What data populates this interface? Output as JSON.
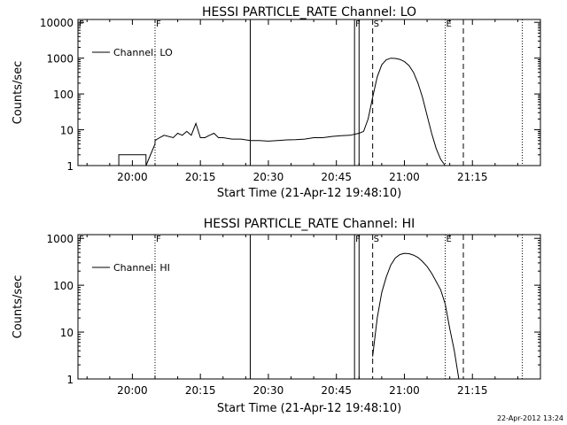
{
  "chart_data": [
    {
      "type": "line",
      "title": "HESSI PARTICLE_RATE Channel: LO",
      "xlabel": "Start Time (21-Apr-12 19:48:10)",
      "ylabel": "Counts/sec",
      "y_scale": "log",
      "ylim": [
        1,
        12000
      ],
      "xlim": [
        "19:48",
        "21:30"
      ],
      "x_ticks": [
        "20:00",
        "20:15",
        "20:30",
        "20:45",
        "21:00",
        "21:15"
      ],
      "y_ticks": [
        "1",
        "10",
        "100",
        "1000",
        "10000"
      ],
      "legend": {
        "placement": "top-left",
        "entries": [
          "Channel: LO"
        ]
      },
      "series": [
        {
          "name": "Channel: LO",
          "color": "#000000",
          "x": [
            "19:56",
            "19:56",
            "19:57",
            "19:57",
            "19:59",
            "20:02",
            "20:03",
            "20:03",
            "20:05",
            "20:05",
            "20:06",
            "20:07",
            "20:09",
            "20:10",
            "20:11",
            "20:12",
            "20:13",
            "20:14",
            "20:15",
            "20:16",
            "20:17",
            "20:18",
            "20:19",
            "20:20",
            "20:22",
            "20:24",
            "20:26",
            "20:28",
            "20:30",
            "20:32",
            "20:34",
            "20:36",
            "20:38",
            "20:40",
            "20:42",
            "20:44",
            "20:46",
            "20:48",
            "20:49",
            "20:50",
            "20:51",
            "20:52",
            "20:53",
            "20:54",
            "20:55",
            "20:56",
            "20:57",
            "20:58",
            "20:59",
            "21:00",
            "21:01",
            "21:02",
            "21:03",
            "21:04",
            "21:05",
            "21:06",
            "21:07",
            "21:08",
            "21:09",
            "21:10",
            "21:11",
            "21:12"
          ],
          "y": [
            1,
            1,
            1,
            2,
            2,
            2,
            2,
            1,
            4,
            5,
            6,
            7,
            6,
            8,
            7,
            9,
            7,
            15,
            6,
            6,
            7,
            8,
            6,
            6,
            5.5,
            5.5,
            5,
            5,
            4.8,
            5,
            5.2,
            5.3,
            5.5,
            6,
            6,
            6.5,
            6.8,
            7,
            7.5,
            8,
            9,
            20,
            80,
            300,
            650,
            900,
            1000,
            980,
            920,
            800,
            620,
            400,
            200,
            80,
            25,
            8,
            3,
            1.5,
            1,
            1,
            1,
            1
          ]
        }
      ],
      "markers": [
        {
          "label": "F",
          "time": "19:48",
          "style": "dotted"
        },
        {
          "label": "F",
          "time": "20:05",
          "style": "dotted"
        },
        {
          "label": "",
          "time": "20:26",
          "style": "solid"
        },
        {
          "label": "F",
          "time": "20:49",
          "style": "solid"
        },
        {
          "label": "",
          "time": "20:50",
          "style": "solid"
        },
        {
          "label": "S",
          "time": "20:53",
          "style": "dashed"
        },
        {
          "label": "E",
          "time": "21:09",
          "style": "dotted"
        },
        {
          "label": "",
          "time": "21:13",
          "style": "dashed"
        },
        {
          "label": "",
          "time": "21:26",
          "style": "dotted"
        }
      ]
    },
    {
      "type": "line",
      "title": "HESSI PARTICLE_RATE Channel: HI",
      "xlabel": "Start Time (21-Apr-12 19:48:10)",
      "ylabel": "Counts/sec",
      "y_scale": "log",
      "ylim": [
        1,
        1200
      ],
      "xlim": [
        "19:48",
        "21:30"
      ],
      "x_ticks": [
        "20:00",
        "20:15",
        "20:30",
        "20:45",
        "21:00",
        "21:15"
      ],
      "y_ticks": [
        "1",
        "10",
        "100",
        "1000"
      ],
      "legend": {
        "placement": "top-left",
        "entries": [
          "Channel: HI"
        ]
      },
      "series": [
        {
          "name": "Channel: HI",
          "color": "#000000",
          "x": [
            "20:53",
            "20:54",
            "20:55",
            "20:56",
            "20:57",
            "20:58",
            "20:59",
            "21:00",
            "21:01",
            "21:02",
            "21:03",
            "21:04",
            "21:05",
            "21:06",
            "21:07",
            "21:08",
            "21:09",
            "21:10",
            "21:11",
            "21:12"
          ],
          "y": [
            3,
            20,
            70,
            150,
            270,
            380,
            450,
            480,
            470,
            440,
            390,
            320,
            250,
            180,
            120,
            80,
            40,
            12,
            4,
            1
          ]
        }
      ],
      "markers": [
        {
          "label": "F",
          "time": "19:48",
          "style": "dotted"
        },
        {
          "label": "F",
          "time": "20:05",
          "style": "dotted"
        },
        {
          "label": "",
          "time": "20:26",
          "style": "solid"
        },
        {
          "label": "F",
          "time": "20:49",
          "style": "solid"
        },
        {
          "label": "",
          "time": "20:50",
          "style": "solid"
        },
        {
          "label": "S",
          "time": "20:53",
          "style": "dashed"
        },
        {
          "label": "E",
          "time": "21:09",
          "style": "dotted"
        },
        {
          "label": "",
          "time": "21:13",
          "style": "dashed"
        },
        {
          "label": "",
          "time": "21:26",
          "style": "dotted"
        }
      ]
    }
  ],
  "footer": {
    "timestamp": "22-Apr-2012 13:24"
  }
}
